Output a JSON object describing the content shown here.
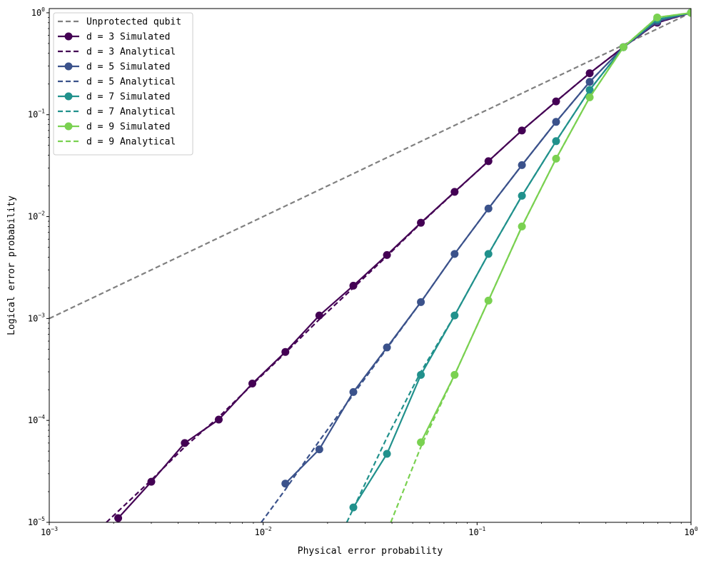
{
  "chart_data": {
    "type": "line",
    "xlabel": "Physical error probability",
    "ylabel": "Logical error probability",
    "x_scale": "log",
    "y_scale": "log",
    "xlim": [
      0.001,
      1
    ],
    "ylim": [
      1e-05,
      1.1
    ],
    "x_ticks": [
      {
        "base": "10",
        "exp": "−3",
        "value": 0.001
      },
      {
        "base": "10",
        "exp": "−2",
        "value": 0.01
      },
      {
        "base": "10",
        "exp": "−1",
        "value": 0.1
      },
      {
        "base": "10",
        "exp": "0",
        "value": 1
      }
    ],
    "y_ticks": [
      {
        "base": "10",
        "exp": "−5",
        "value": 1e-05
      },
      {
        "base": "10",
        "exp": "−4",
        "value": 0.0001
      },
      {
        "base": "10",
        "exp": "−3",
        "value": 0.001
      },
      {
        "base": "10",
        "exp": "−2",
        "value": 0.01
      },
      {
        "base": "10",
        "exp": "−1",
        "value": 0.1
      },
      {
        "base": "10",
        "exp": "0",
        "value": 1
      }
    ],
    "grid": false,
    "legend_position": "upper-left",
    "series": [
      {
        "name": "Unprotected qubit",
        "style": "dashed",
        "color": "#808080",
        "x": [
          0.001,
          1
        ],
        "y": [
          0.001,
          1
        ]
      },
      {
        "name": "d = 3 Simulated",
        "style": "solid-marker",
        "color": "#440154",
        "x": [
          0.0021,
          0.003,
          0.0043,
          0.0062,
          0.0089,
          0.0127,
          0.0183,
          0.0264,
          0.0379,
          0.0546,
          0.0785,
          0.113,
          0.162,
          0.234,
          0.336,
          0.483,
          0.695,
          1.0
        ],
        "y": [
          1.1e-05,
          2.5e-05,
          6e-05,
          0.000102,
          0.00023,
          0.00047,
          0.00107,
          0.0021,
          0.0042,
          0.0087,
          0.0175,
          0.035,
          0.07,
          0.135,
          0.255,
          0.46,
          0.8,
          1.0
        ]
      },
      {
        "name": "d = 3 Analytical",
        "style": "dashed",
        "color": "#440154",
        "x": [
          0.00185,
          0.003,
          0.0043,
          0.0062,
          0.0089,
          0.0127,
          0.0183,
          0.0264,
          0.0379,
          0.0546,
          0.0785,
          0.113,
          0.162,
          0.234,
          0.336,
          0.483,
          0.695,
          1.0
        ],
        "y": [
          1e-05,
          2.6e-05,
          5.5e-05,
          0.000108,
          0.000225,
          0.00046,
          0.00098,
          0.002,
          0.0041,
          0.0086,
          0.0174,
          0.035,
          0.07,
          0.135,
          0.255,
          0.46,
          0.8,
          1.0
        ]
      },
      {
        "name": "d = 5 Simulated",
        "style": "solid-marker",
        "color": "#3b528b",
        "x": [
          0.0127,
          0.0183,
          0.0264,
          0.0379,
          0.0546,
          0.0785,
          0.113,
          0.162,
          0.234,
          0.336,
          0.483,
          0.695,
          1.0
        ],
        "y": [
          2.4e-05,
          5.2e-05,
          0.00019,
          0.00052,
          0.00145,
          0.0043,
          0.012,
          0.032,
          0.085,
          0.21,
          0.46,
          0.82,
          1.0
        ]
      },
      {
        "name": "d = 5 Analytical",
        "style": "dashed",
        "color": "#3b528b",
        "x": [
          0.0098,
          0.0127,
          0.0183,
          0.0264,
          0.0379,
          0.0546,
          0.0785,
          0.113,
          0.162,
          0.234,
          0.336,
          0.483,
          0.695,
          1.0
        ],
        "y": [
          1e-05,
          2.1e-05,
          6.3e-05,
          0.00018,
          0.00051,
          0.00145,
          0.0043,
          0.012,
          0.032,
          0.085,
          0.21,
          0.46,
          0.82,
          1.0
        ]
      },
      {
        "name": "d = 7 Simulated",
        "style": "solid-marker",
        "color": "#21918c",
        "x": [
          0.0264,
          0.0379,
          0.0546,
          0.0785,
          0.113,
          0.162,
          0.234,
          0.336,
          0.483,
          0.695,
          1.0
        ],
        "y": [
          1.4e-05,
          4.7e-05,
          0.00028,
          0.00107,
          0.0043,
          0.016,
          0.055,
          0.175,
          0.46,
          0.86,
          1.0
        ]
      },
      {
        "name": "d = 7 Analytical",
        "style": "dashed",
        "color": "#21918c",
        "x": [
          0.0246,
          0.0379,
          0.0546,
          0.0785,
          0.113,
          0.162,
          0.234,
          0.336,
          0.483,
          0.695,
          1.0
        ],
        "y": [
          1e-05,
          6.8e-05,
          0.0003,
          0.00107,
          0.0043,
          0.016,
          0.055,
          0.175,
          0.46,
          0.86,
          1.0
        ]
      },
      {
        "name": "d = 9 Simulated",
        "style": "solid-marker",
        "color": "#7ad151",
        "x": [
          0.0546,
          0.0785,
          0.113,
          0.162,
          0.234,
          0.336,
          0.483,
          0.695,
          1.0
        ],
        "y": [
          6.1e-05,
          0.00028,
          0.0015,
          0.008,
          0.037,
          0.148,
          0.46,
          0.9,
          1.0
        ]
      },
      {
        "name": "d = 9 Analytical",
        "style": "dashed",
        "color": "#7ad151",
        "x": [
          0.0395,
          0.0546,
          0.0785,
          0.113,
          0.162,
          0.234,
          0.336,
          0.483,
          0.695,
          1.0
        ],
        "y": [
          1e-05,
          5.5e-05,
          0.00028,
          0.0015,
          0.008,
          0.037,
          0.148,
          0.46,
          0.9,
          1.0
        ]
      }
    ]
  }
}
